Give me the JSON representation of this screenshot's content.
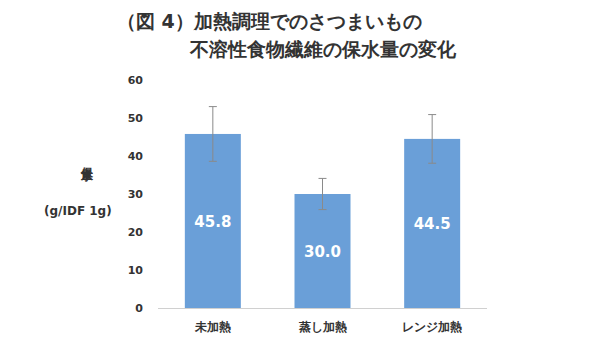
{
  "chart_data": {
    "type": "bar",
    "title": [
      "（図 4）加熱調理でのさつまいもの",
      "不溶性食物繊維の保水量の変化"
    ],
    "y_label": [
      "保水量",
      "(g/IDF 1g)"
    ],
    "categories": [
      "未加熱",
      "蒸し加熱",
      "レンジ加熱"
    ],
    "values": [
      45.8,
      30.0,
      44.5
    ],
    "value_labels": [
      "45.8",
      "30.0",
      "44.5"
    ],
    "errors": [
      7.2,
      4.1,
      6.4
    ],
    "color": "#6a9fd8",
    "ylim": [
      0,
      60
    ],
    "yticks": [
      0,
      10,
      20,
      30,
      40,
      50,
      60
    ],
    "grid": false,
    "data_labels": true
  }
}
